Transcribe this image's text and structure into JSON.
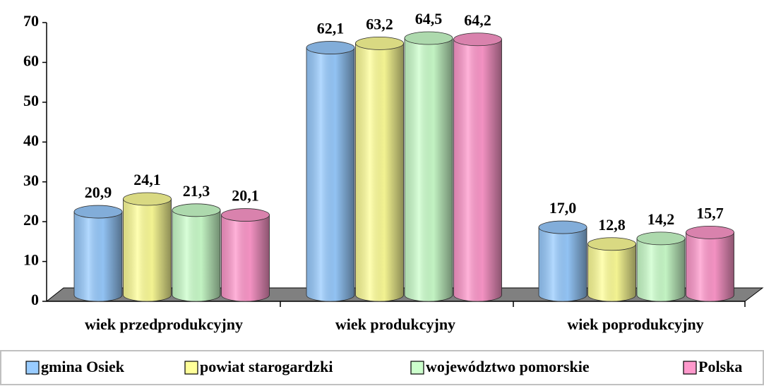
{
  "chart_data": {
    "type": "bar",
    "categories": [
      "wiek przedprodukcyjny",
      "wiek produkcyjny",
      "wiek poprodukcyjny"
    ],
    "series": [
      {
        "name": "gmina Osiek",
        "color": "#99ccff",
        "values": [
          20.9,
          62.1,
          17.0
        ],
        "value_labels": [
          "20,9",
          "62,1",
          "17,0"
        ]
      },
      {
        "name": "powiat starogardzki",
        "color": "#ffff99",
        "values": [
          24.1,
          63.2,
          12.8
        ],
        "value_labels": [
          "24,1",
          "63,2",
          "12,8"
        ]
      },
      {
        "name": "województwo pomorskie",
        "color": "#ccffcc",
        "values": [
          21.3,
          64.5,
          14.2
        ],
        "value_labels": [
          "21,3",
          "64,5",
          "14,2"
        ]
      },
      {
        "name": "Polska",
        "color": "#ff99cc",
        "values": [
          20.1,
          64.2,
          15.7
        ],
        "value_labels": [
          "20,1",
          "64,2",
          "15,7"
        ]
      }
    ],
    "ylim": [
      0,
      70
    ],
    "yticks": [
      0,
      10,
      20,
      30,
      40,
      50,
      60,
      70
    ]
  }
}
